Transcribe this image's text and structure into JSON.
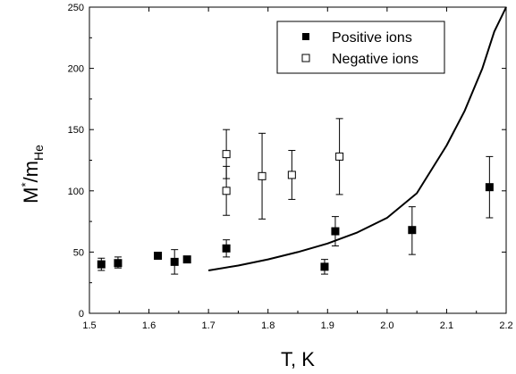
{
  "chart_data": {
    "type": "scatter",
    "xlabel": "T, K",
    "ylabel": {
      "main": "M",
      "sup": "*",
      "mid": "/m",
      "sub": "He"
    },
    "xlim": [
      1.5,
      2.2
    ],
    "ylim": [
      0,
      250
    ],
    "xticks": [
      1.5,
      1.6,
      1.7,
      1.8,
      1.9,
      2.0,
      2.1,
      2.2
    ],
    "yticks": [
      0,
      50,
      100,
      150,
      200,
      250
    ],
    "xtick_labels": [
      "1.5",
      "1.6",
      "1.7",
      "1.8",
      "1.9",
      "2.0",
      "2.1",
      "2.2"
    ],
    "ytick_labels": [
      "0",
      "50",
      "100",
      "150",
      "200",
      "250"
    ],
    "grid": false,
    "legend_position": "top-right",
    "series": [
      {
        "name": "Positive ions",
        "marker": "filled-square",
        "points": [
          {
            "x": 1.52,
            "y": 40,
            "err_low": 35,
            "err_high": 45
          },
          {
            "x": 1.548,
            "y": 41,
            "err_low": 37,
            "err_high": 46
          },
          {
            "x": 1.615,
            "y": 47,
            "err_low": 46,
            "err_high": 48
          },
          {
            "x": 1.643,
            "y": 42,
            "err_low": 32,
            "err_high": 52
          },
          {
            "x": 1.664,
            "y": 44,
            "err_low": 44,
            "err_high": 44
          },
          {
            "x": 1.73,
            "y": 53,
            "err_low": 46,
            "err_high": 60
          },
          {
            "x": 1.895,
            "y": 38,
            "err_low": 32,
            "err_high": 44
          },
          {
            "x": 1.913,
            "y": 67,
            "err_low": 55,
            "err_high": 79
          },
          {
            "x": 2.042,
            "y": 68,
            "err_low": 48,
            "err_high": 87
          },
          {
            "x": 2.172,
            "y": 103,
            "err_low": 78,
            "err_high": 128
          }
        ]
      },
      {
        "name": "Negative ions",
        "marker": "open-square",
        "points": [
          {
            "x": 1.73,
            "y": 130,
            "err_low": 110,
            "err_high": 150
          },
          {
            "x": 1.73,
            "y": 100,
            "err_low": 80,
            "err_high": 120
          },
          {
            "x": 1.79,
            "y": 112,
            "err_low": 77,
            "err_high": 147
          },
          {
            "x": 1.84,
            "y": 113,
            "err_low": 93,
            "err_high": 133
          },
          {
            "x": 1.92,
            "y": 128,
            "err_low": 97,
            "err_high": 159
          }
        ]
      },
      {
        "marker": "line",
        "x": [
          1.7,
          1.75,
          1.8,
          1.85,
          1.9,
          1.95,
          2.0,
          2.05,
          2.1,
          2.13,
          2.16,
          2.18,
          2.2
        ],
        "y": [
          35,
          39,
          44,
          50,
          57,
          66,
          78,
          98,
          137,
          165,
          200,
          230,
          250
        ]
      }
    ]
  }
}
